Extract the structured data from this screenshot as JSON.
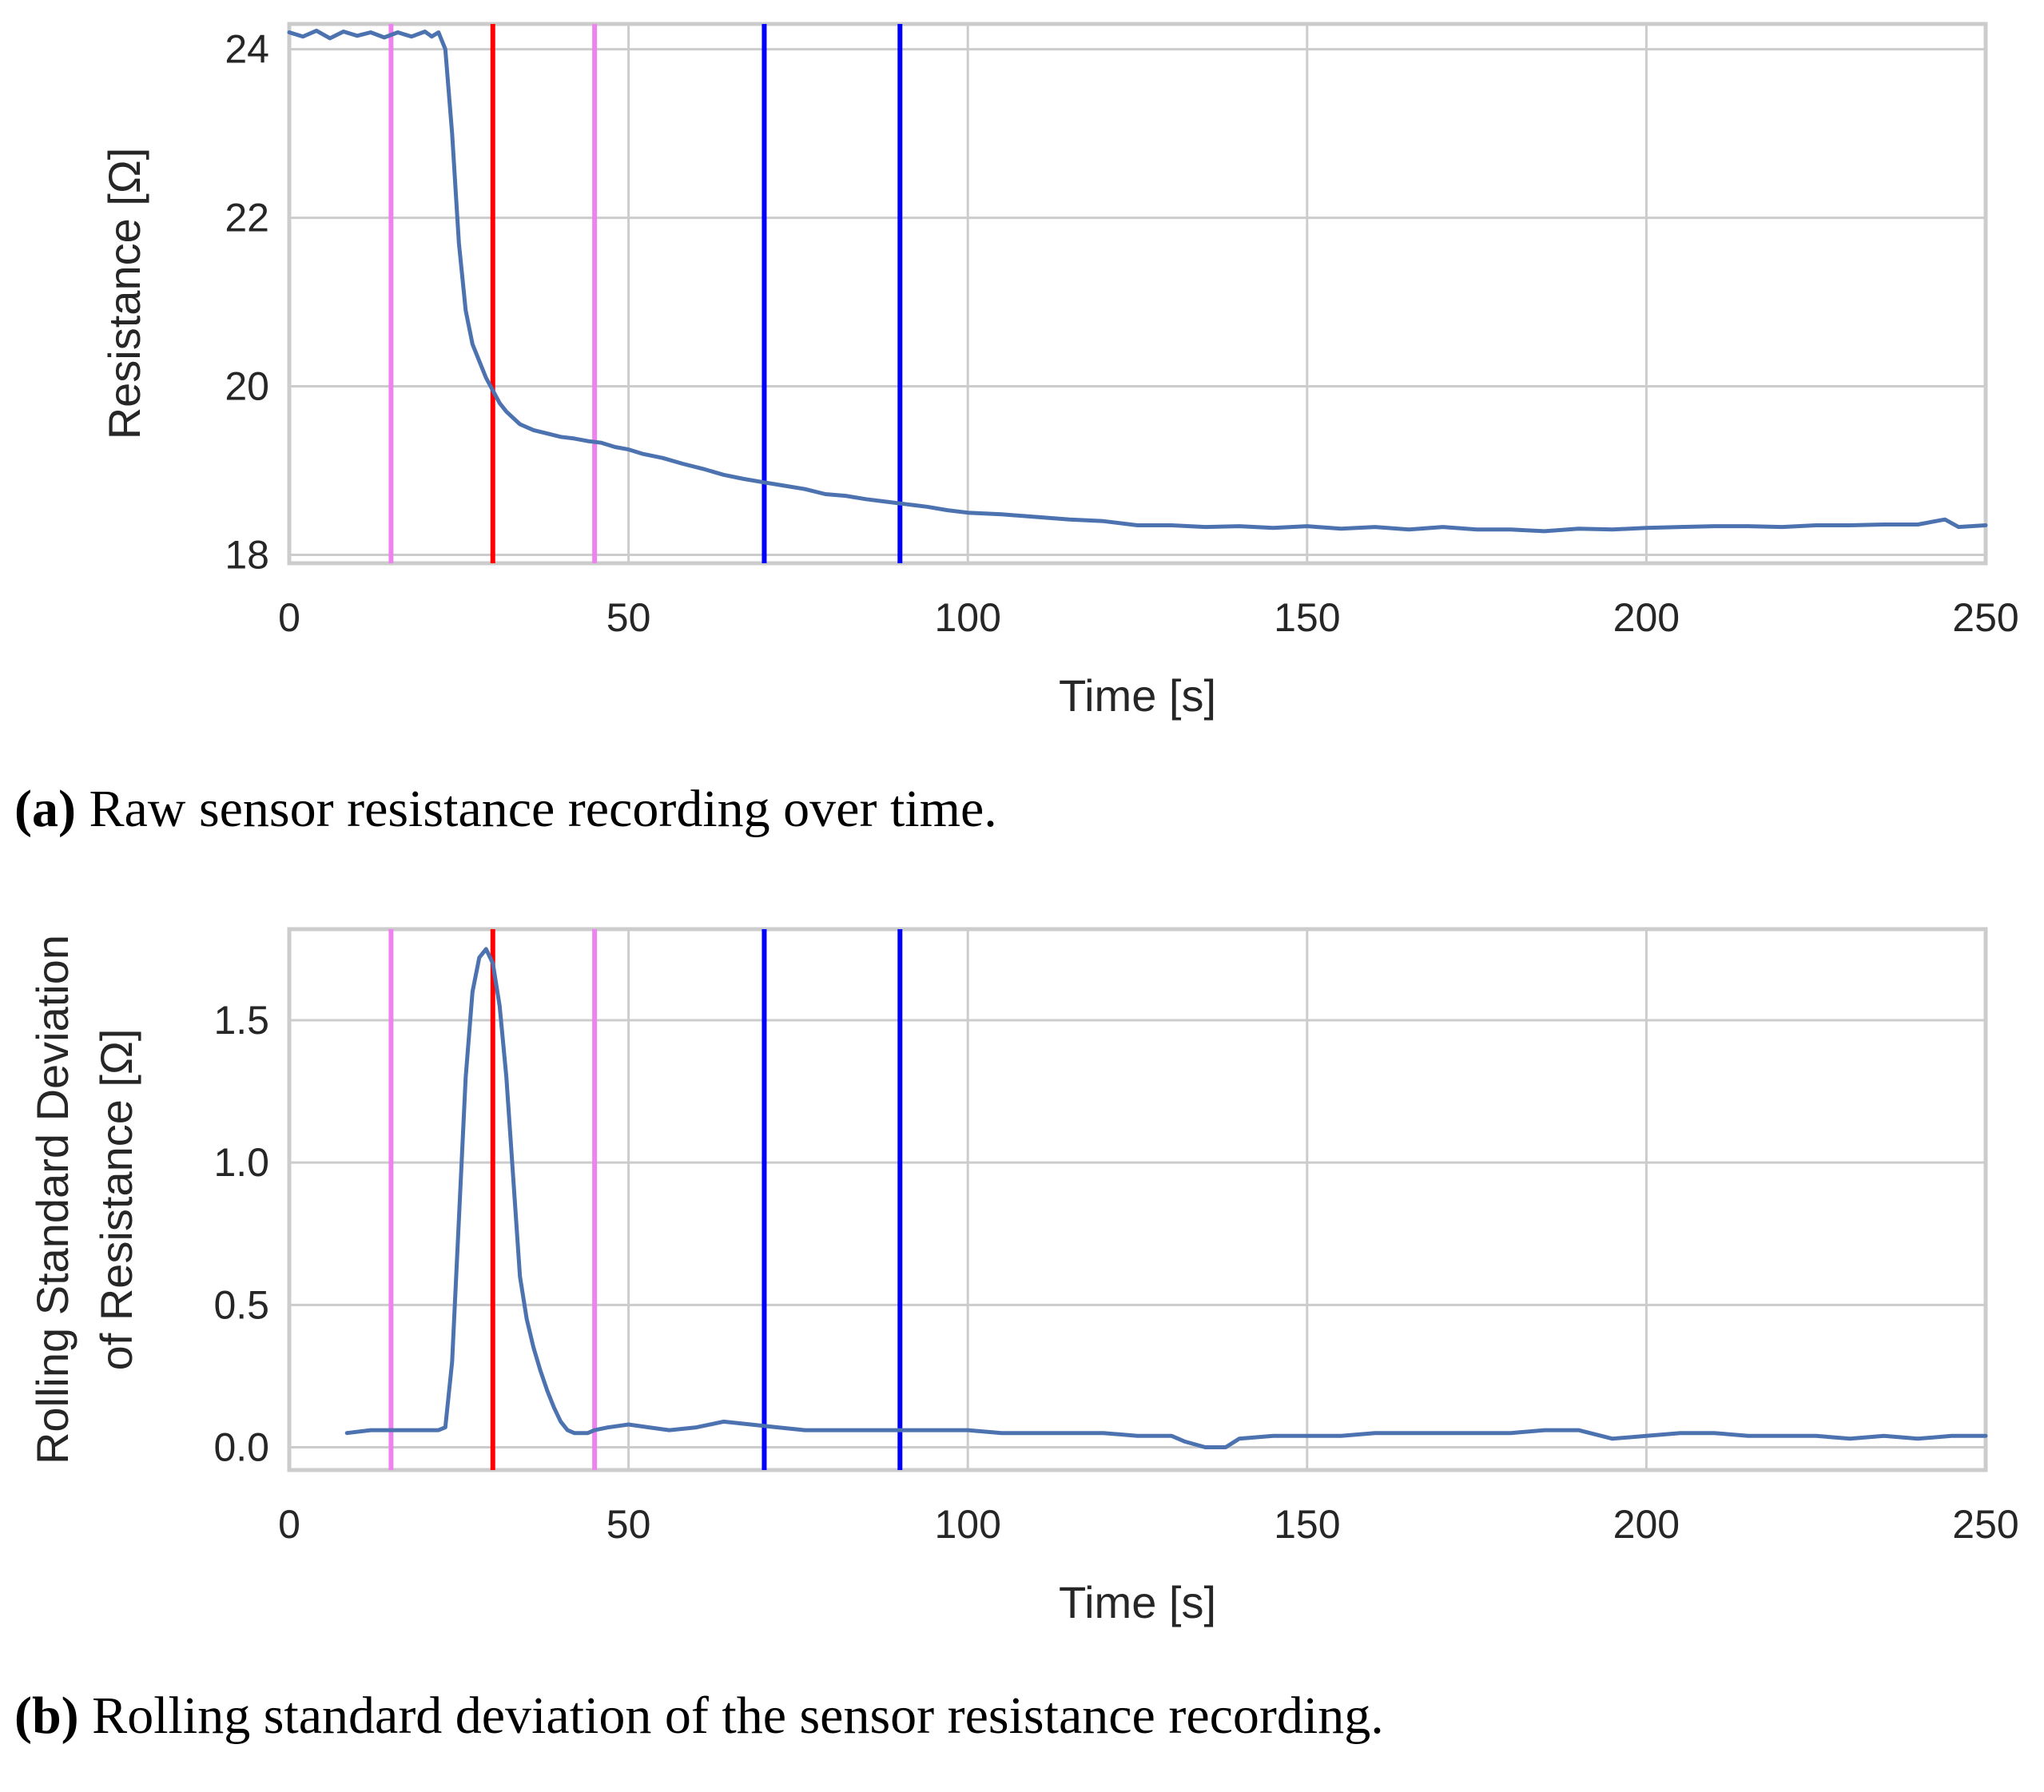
{
  "colors": {
    "series": "#4c72b0",
    "grid": "#cccccc",
    "frame": "#cccccc",
    "violet": "#ee82ee",
    "red": "#ff0000",
    "blue": "#0000ff"
  },
  "captions": {
    "a_tag": "(a)",
    "a_text": "Raw sensor resistance recording over time.",
    "b_tag": "(b)",
    "b_text": "Rolling standard deviation of the sensor resistance recording."
  },
  "chart_data": [
    {
      "type": "line",
      "id": "a",
      "title": "",
      "xlabel": "Time [s]",
      "ylabel": "Resistance [Ω]",
      "xlim": [
        0,
        250
      ],
      "ylim": [
        17.9,
        24.3
      ],
      "xticks": [
        0,
        50,
        100,
        150,
        200,
        250
      ],
      "xtick_labels": [
        "0",
        "50",
        "100",
        "150",
        "200",
        "250"
      ],
      "yticks": [
        18,
        20,
        22,
        24
      ],
      "ytick_labels": [
        "18",
        "20",
        "22",
        "24"
      ],
      "grid": true,
      "vlines": [
        {
          "x": 15,
          "color": "violet"
        },
        {
          "x": 30,
          "color": "red"
        },
        {
          "x": 45,
          "color": "violet"
        },
        {
          "x": 70,
          "color": "blue"
        },
        {
          "x": 90,
          "color": "blue"
        }
      ],
      "series": [
        {
          "name": "Resistance",
          "color": "series",
          "x": [
            0,
            2,
            4,
            6,
            8,
            10,
            12,
            14,
            16,
            18,
            20,
            21,
            22,
            23,
            24,
            25,
            26,
            27,
            28,
            29,
            30,
            31,
            32,
            34,
            36,
            38,
            40,
            42,
            44,
            46,
            48,
            50,
            52,
            55,
            58,
            61,
            64,
            67,
            70,
            73,
            76,
            79,
            82,
            85,
            88,
            91,
            94,
            97,
            100,
            105,
            110,
            115,
            120,
            125,
            130,
            135,
            140,
            145,
            150,
            155,
            160,
            165,
            170,
            175,
            180,
            185,
            190,
            195,
            200,
            205,
            210,
            215,
            220,
            225,
            230,
            235,
            240,
            244,
            246,
            250
          ],
          "y": [
            24.2,
            24.15,
            24.22,
            24.13,
            24.21,
            24.16,
            24.2,
            24.14,
            24.2,
            24.15,
            24.21,
            24.15,
            24.2,
            24.0,
            23.0,
            21.7,
            20.9,
            20.5,
            20.3,
            20.1,
            19.95,
            19.8,
            19.7,
            19.55,
            19.48,
            19.44,
            19.4,
            19.38,
            19.35,
            19.33,
            19.28,
            19.25,
            19.2,
            19.15,
            19.08,
            19.02,
            18.95,
            18.9,
            18.86,
            18.82,
            18.78,
            18.72,
            18.7,
            18.66,
            18.63,
            18.6,
            18.57,
            18.53,
            18.5,
            18.48,
            18.45,
            18.42,
            18.4,
            18.35,
            18.35,
            18.33,
            18.34,
            18.32,
            18.34,
            18.31,
            18.33,
            18.3,
            18.33,
            18.3,
            18.3,
            18.28,
            18.31,
            18.3,
            18.32,
            18.33,
            18.34,
            18.34,
            18.33,
            18.35,
            18.35,
            18.36,
            18.36,
            18.42,
            18.33,
            18.35
          ]
        }
      ]
    },
    {
      "type": "line",
      "id": "b",
      "title": "",
      "xlabel": "Time [s]",
      "ylabel_line1": "Rolling Standard Deviation",
      "ylabel_line2": "of Resistance [Ω]",
      "xlim": [
        0,
        250
      ],
      "ylim": [
        -0.08,
        1.82
      ],
      "xticks": [
        0,
        50,
        100,
        150,
        200,
        250
      ],
      "xtick_labels": [
        "0",
        "50",
        "100",
        "150",
        "200",
        "250"
      ],
      "yticks": [
        0.0,
        0.5,
        1.0,
        1.5
      ],
      "ytick_labels": [
        "0.0",
        "0.5",
        "1.0",
        "1.5"
      ],
      "grid": true,
      "vlines": [
        {
          "x": 15,
          "color": "violet"
        },
        {
          "x": 30,
          "color": "red"
        },
        {
          "x": 45,
          "color": "violet"
        },
        {
          "x": 70,
          "color": "blue"
        },
        {
          "x": 90,
          "color": "blue"
        }
      ],
      "series": [
        {
          "name": "Rolling std",
          "color": "series",
          "x": [
            8.5,
            12,
            16,
            20,
            22,
            23,
            24,
            25,
            26,
            27,
            28,
            29,
            30,
            31,
            32,
            33,
            34,
            35,
            36,
            37,
            38,
            39,
            40,
            41,
            42,
            43,
            44,
            45,
            47,
            50,
            53,
            56,
            60,
            64,
            68,
            72,
            76,
            80,
            85,
            90,
            95,
            100,
            105,
            110,
            115,
            120,
            125,
            130,
            132,
            135,
            138,
            140,
            145,
            150,
            155,
            160,
            165,
            170,
            175,
            180,
            185,
            190,
            195,
            200,
            205,
            210,
            215,
            220,
            225,
            230,
            235,
            240,
            245,
            250
          ],
          "y": [
            0.05,
            0.06,
            0.06,
            0.06,
            0.06,
            0.07,
            0.3,
            0.8,
            1.3,
            1.6,
            1.72,
            1.75,
            1.7,
            1.55,
            1.3,
            0.95,
            0.6,
            0.45,
            0.35,
            0.27,
            0.2,
            0.14,
            0.09,
            0.06,
            0.05,
            0.05,
            0.05,
            0.06,
            0.07,
            0.08,
            0.07,
            0.06,
            0.07,
            0.09,
            0.08,
            0.07,
            0.06,
            0.06,
            0.06,
            0.06,
            0.06,
            0.06,
            0.05,
            0.05,
            0.05,
            0.05,
            0.04,
            0.04,
            0.02,
            0.0,
            0.0,
            0.03,
            0.04,
            0.04,
            0.04,
            0.05,
            0.05,
            0.05,
            0.05,
            0.05,
            0.06,
            0.06,
            0.03,
            0.04,
            0.05,
            0.05,
            0.04,
            0.04,
            0.04,
            0.03,
            0.04,
            0.03,
            0.04,
            0.04
          ]
        }
      ]
    }
  ]
}
